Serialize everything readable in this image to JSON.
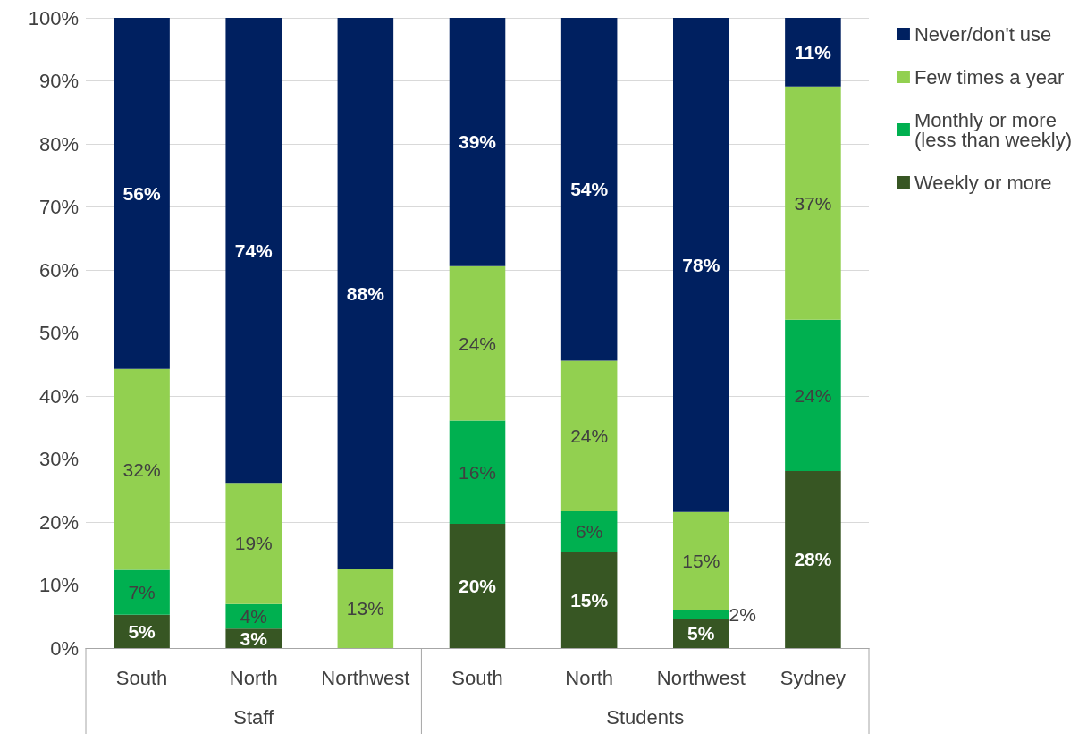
{
  "chart_data": {
    "type": "bar",
    "stacked": true,
    "categories": [
      "South",
      "North",
      "Northwest",
      "South",
      "North",
      "Northwest",
      "Sydney"
    ],
    "series": [
      {
        "name": "Weekly or more",
        "color": "#375623",
        "values": [
          5.3,
          3.1,
          null,
          19.7,
          15.3,
          4.6,
          28.1
        ],
        "value_labels": [
          "5%",
          "3%",
          null,
          "20%",
          "15%",
          "5%",
          "28%"
        ]
      },
      {
        "name": "Monthly or more (less than weekly)",
        "color": "#00b050",
        "values": [
          7.1,
          3.9,
          null,
          16.4,
          6.4,
          1.5,
          24.0
        ],
        "value_labels": [
          "7%",
          "4%",
          null,
          "16%",
          "6%",
          "2%",
          "24%"
        ]
      },
      {
        "name": "Few times a year",
        "color": "#92d050",
        "values": [
          31.9,
          19.2,
          12.5,
          24.5,
          23.9,
          15.5,
          37.0
        ],
        "value_labels": [
          "32%",
          "19%",
          "13%",
          "24%",
          "24%",
          "15%",
          "37%"
        ]
      },
      {
        "name": "Never/don't use",
        "color": "#002060",
        "values": [
          55.7,
          73.8,
          87.5,
          39.4,
          54.4,
          78.5,
          10.9
        ],
        "value_labels": [
          "56%",
          "74%",
          "88%",
          "39%",
          "54%",
          "78%",
          "11%"
        ]
      }
    ],
    "ylim": [
      0,
      100
    ],
    "yticks": [
      {
        "value": 0,
        "label": "0%"
      },
      {
        "value": 10,
        "label": "10%"
      },
      {
        "value": 20,
        "label": "20%"
      },
      {
        "value": 30,
        "label": "30%"
      },
      {
        "value": 40,
        "label": "40%"
      },
      {
        "value": 50,
        "label": "50%"
      },
      {
        "value": 60,
        "label": "60%"
      },
      {
        "value": 70,
        "label": "70%"
      },
      {
        "value": 80,
        "label": "80%"
      },
      {
        "value": 90,
        "label": "90%"
      },
      {
        "value": 100,
        "label": "100%"
      }
    ],
    "grid": "y",
    "legend": "top right",
    "annotations": [
      "Staff",
      "Students"
    ]
  }
}
